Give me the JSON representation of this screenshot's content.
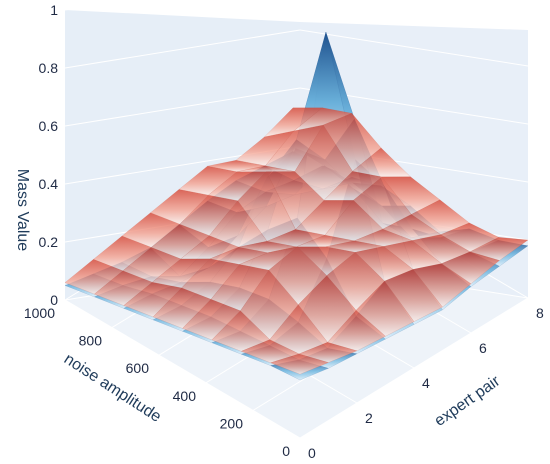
{
  "chart_data": {
    "type": "surface",
    "title": "",
    "x_axis": {
      "label": "expert pair",
      "ticks": [
        0,
        2,
        4,
        6,
        8
      ]
    },
    "y_axis": {
      "label": "noise amplitude",
      "ticks": [
        0,
        200,
        400,
        600,
        800,
        1000
      ]
    },
    "z_axis": {
      "label": "Mass Value",
      "ticks": [
        0,
        0.2,
        0.4,
        0.6,
        0.8,
        1
      ],
      "ticks_text": [
        "0",
        "0.2",
        "0.4",
        "0.6",
        "0.8",
        "1"
      ]
    },
    "series": [
      {
        "colorscale": "blue",
        "x": [
          0,
          1,
          2,
          3,
          4,
          5,
          6,
          7,
          8
        ],
        "y": [
          0,
          125,
          250,
          375,
          500,
          625,
          750,
          875,
          1000
        ],
        "z": [
          [
            0.2,
            0.18,
            0.17,
            0.16,
            0.15,
            0.14,
            0.16,
            0.17,
            0.18
          ],
          [
            0.19,
            0.15,
            0.13,
            0.18,
            0.24,
            0.22,
            0.18,
            0.16,
            0.14
          ],
          [
            0.17,
            0.14,
            0.16,
            0.32,
            0.6,
            0.45,
            0.24,
            0.15,
            0.12
          ],
          [
            0.15,
            0.13,
            0.18,
            0.4,
            0.98,
            0.62,
            0.2,
            0.09,
            0.05
          ],
          [
            0.13,
            0.12,
            0.16,
            0.3,
            0.55,
            0.42,
            0.26,
            0.14,
            0.08
          ],
          [
            0.11,
            0.1,
            0.12,
            0.18,
            0.36,
            0.4,
            0.28,
            0.16,
            0.09
          ],
          [
            0.09,
            0.08,
            0.06,
            0.05,
            0.1,
            0.14,
            0.12,
            0.08,
            0.06
          ],
          [
            0.07,
            0.05,
            0.02,
            -0.04,
            0.0,
            0.06,
            0.07,
            0.05,
            0.04
          ],
          [
            0.05,
            0.03,
            0.01,
            0.0,
            0.02,
            0.04,
            0.05,
            0.04,
            0.03
          ]
        ]
      },
      {
        "colorscale": "red",
        "x": [
          0,
          1,
          2,
          3,
          4,
          5,
          6,
          7,
          8
        ],
        "y": [
          0,
          125,
          250,
          375,
          500,
          625,
          750,
          875,
          1000
        ],
        "z": [
          [
            0.22,
            0.2,
            0.18,
            0.17,
            0.16,
            0.15,
            0.17,
            0.19,
            0.2
          ],
          [
            0.2,
            0.17,
            0.15,
            0.2,
            0.24,
            0.22,
            0.18,
            0.16,
            0.15
          ],
          [
            0.18,
            0.16,
            0.22,
            0.26,
            0.28,
            0.24,
            0.2,
            0.16,
            0.14
          ],
          [
            0.16,
            0.2,
            0.28,
            0.3,
            0.24,
            0.2,
            0.18,
            0.17,
            0.16
          ],
          [
            0.14,
            0.18,
            0.24,
            0.22,
            0.18,
            0.16,
            0.22,
            0.24,
            0.18
          ],
          [
            0.12,
            0.16,
            0.2,
            0.18,
            0.14,
            0.12,
            0.16,
            0.2,
            0.22
          ],
          [
            0.1,
            0.12,
            0.14,
            0.16,
            0.22,
            0.26,
            0.2,
            0.3,
            0.28
          ],
          [
            0.08,
            0.1,
            0.12,
            0.14,
            0.18,
            0.2,
            0.16,
            0.22,
            0.24
          ],
          [
            0.06,
            0.08,
            0.1,
            0.12,
            0.14,
            0.16,
            0.12,
            0.14,
            0.18
          ]
        ]
      }
    ],
    "gridlines": true,
    "legend": "none"
  }
}
